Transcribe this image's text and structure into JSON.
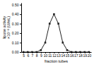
{
  "chart_data": {
    "type": "line",
    "xlabel": "fraction tubes",
    "ylabel": "lipase activity\n×10⁻² (U/mL)",
    "x": [
      5,
      6,
      7,
      8,
      9,
      10,
      11,
      12,
      13,
      14,
      15,
      16,
      17,
      18,
      19,
      20
    ],
    "values": [
      0.0,
      0.0,
      0.0,
      0.0,
      0.02,
      0.1,
      0.3,
      0.4,
      0.3,
      0.1,
      0.02,
      0.0,
      0.0,
      0.0,
      0.0,
      0.0
    ],
    "xlim": [
      4.5,
      20.5
    ],
    "xticks": [
      5,
      6,
      7,
      8,
      9,
      10,
      11,
      12,
      13,
      14,
      15,
      16,
      17,
      18,
      19,
      20
    ],
    "ylim": [
      0.0,
      0.52
    ],
    "yticks": [
      {
        "value": 0.0,
        "label": "0.00"
      },
      {
        "value": 0.1,
        "label": "0.10"
      },
      {
        "value": 0.2,
        "label": "0.20"
      },
      {
        "value": 0.3,
        "label": "0.30"
      },
      {
        "value": 0.4,
        "label": "0.40"
      },
      {
        "value": 0.5,
        "label": "0.50"
      }
    ],
    "color": "#222222",
    "marker": "square",
    "line_style": "solid",
    "grid": false
  }
}
